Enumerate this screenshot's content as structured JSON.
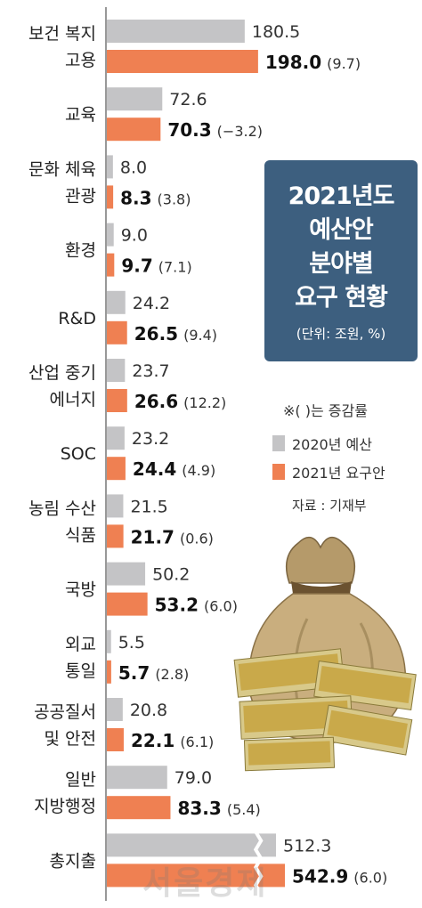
{
  "title": {
    "line1": "2021년도",
    "line2": "예산안",
    "line3": "분야별",
    "line4": "요구 현황",
    "unit": "(단위: 조원, %)"
  },
  "note": "※(   )는 증감률",
  "legend": {
    "item_2020": "2020년 예산",
    "item_2021": "2021년 요구안"
  },
  "source": "자료 : 기재부",
  "watermark": "서울경제",
  "colors": {
    "bar_2020": "#c4c4c6",
    "bar_2021": "#ef8052",
    "title_bg": "#3d5f7f"
  },
  "chart_data": {
    "type": "bar",
    "orientation": "horizontal",
    "categories": [
      [
        "보건 복지",
        "고용"
      ],
      [
        "교육"
      ],
      [
        "문화 체육",
        "관광"
      ],
      [
        "환경"
      ],
      [
        "R&D"
      ],
      [
        "산업 중기",
        "에너지"
      ],
      [
        "SOC"
      ],
      [
        "농림 수산",
        "식품"
      ],
      [
        "국방"
      ],
      [
        "외교",
        "통일"
      ],
      [
        "공공질서",
        "및 안전"
      ],
      [
        "일반",
        "지방행정"
      ],
      [
        "총지출"
      ]
    ],
    "series": [
      {
        "name": "2020년 예산",
        "values": [
          180.5,
          72.6,
          8.0,
          9.0,
          24.2,
          23.7,
          23.2,
          21.5,
          50.2,
          5.5,
          20.8,
          79.0,
          512.3
        ],
        "labels": [
          "180.5",
          "72.6",
          "8.0",
          "9.0",
          "24.2",
          "23.7",
          "23.2",
          "21.5",
          "50.2",
          "5.5",
          "20.8",
          "79.0",
          "512.3"
        ]
      },
      {
        "name": "2021년 요구안",
        "values": [
          198.0,
          70.3,
          8.3,
          9.7,
          26.5,
          26.6,
          24.4,
          21.7,
          53.2,
          5.7,
          22.1,
          83.3,
          542.9
        ],
        "labels": [
          "198.0",
          "70.3",
          "8.3",
          "9.7",
          "26.5",
          "26.6",
          "24.4",
          "21.7",
          "53.2",
          "5.7",
          "22.1",
          "83.3",
          "542.9"
        ],
        "change_labels": [
          "(9.7)",
          "(−3.2)",
          "(3.8)",
          "(7.1)",
          "(9.4)",
          "(12.2)",
          "(4.9)",
          "(0.6)",
          "(6.0)",
          "(2.8)",
          "(6.1)",
          "(5.4)",
          "(6.0)"
        ]
      }
    ],
    "axis_break_on": "총지출"
  }
}
